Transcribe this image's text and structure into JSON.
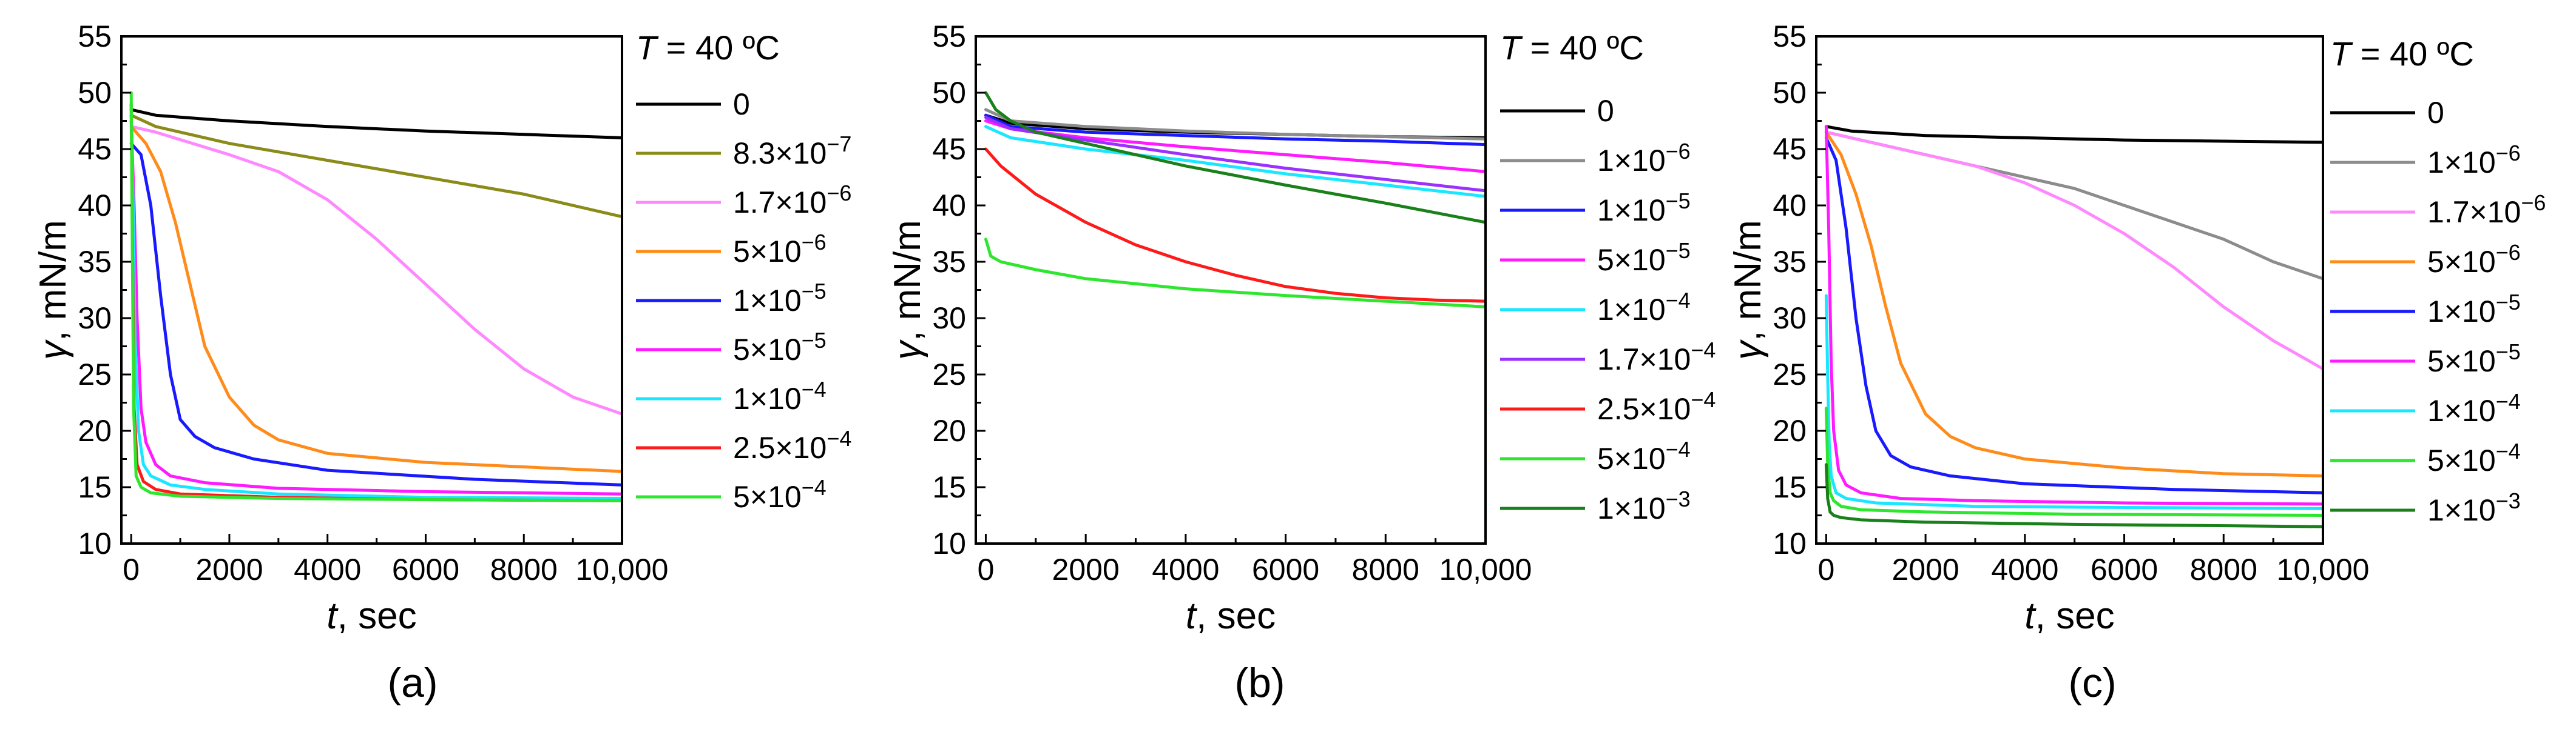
{
  "chart_data": [
    {
      "panel": "(a)",
      "type": "line",
      "xlabel": "t, sec",
      "ylabel": "γ, mN/m",
      "xlim": [
        -200,
        10000
      ],
      "ylim": [
        10,
        55
      ],
      "xticks": [
        "0",
        "2000",
        "4000",
        "6000",
        "8000",
        "10,000"
      ],
      "yticks": [
        "10",
        "15",
        "20",
        "25",
        "30",
        "35",
        "40",
        "45",
        "50",
        "55"
      ],
      "legend_title": "T = 40 ºC",
      "series": [
        {
          "name": "0",
          "color": "#000000",
          "x": [
            0,
            500,
            2000,
            4000,
            6000,
            8000,
            10000
          ],
          "y": [
            48.5,
            48.0,
            47.5,
            47.0,
            46.6,
            46.3,
            46.0
          ]
        },
        {
          "name": "8.3×10−7",
          "color": "#8b8b1a",
          "x": [
            0,
            500,
            2000,
            4000,
            6000,
            8000,
            10000
          ],
          "y": [
            48.0,
            47.0,
            45.5,
            44.0,
            42.5,
            41.0,
            39.0
          ]
        },
        {
          "name": "1.7×10−6",
          "color": "#ff88ff",
          "x": [
            0,
            500,
            2000,
            3000,
            4000,
            5000,
            6000,
            7000,
            8000,
            9000,
            10000
          ],
          "y": [
            47.0,
            46.5,
            44.5,
            43.0,
            40.5,
            37.0,
            33.0,
            29.0,
            25.5,
            23.0,
            21.5
          ]
        },
        {
          "name": "5×10−6",
          "color": "#ff8c1a",
          "x": [
            0,
            300,
            600,
            900,
            1200,
            1500,
            2000,
            2500,
            3000,
            4000,
            6000,
            8000,
            10000
          ],
          "y": [
            47.0,
            45.5,
            43.0,
            38.5,
            33.0,
            27.5,
            23.0,
            20.5,
            19.2,
            18.0,
            17.2,
            16.8,
            16.4
          ]
        },
        {
          "name": "1×10−5",
          "color": "#1a1aff",
          "x": [
            0,
            200,
            400,
            600,
            800,
            1000,
            1300,
            1700,
            2500,
            4000,
            7000,
            10000
          ],
          "y": [
            45.5,
            44.5,
            40.0,
            32.0,
            25.0,
            21.0,
            19.5,
            18.5,
            17.5,
            16.5,
            15.7,
            15.2
          ]
        },
        {
          "name": "5×10−5",
          "color": "#ff1aff",
          "x": [
            0,
            60,
            120,
            200,
            300,
            500,
            800,
            1500,
            3000,
            6000,
            10000
          ],
          "y": [
            47.5,
            40.0,
            30.0,
            22.0,
            19.0,
            17.0,
            16.0,
            15.4,
            14.9,
            14.6,
            14.4
          ]
        },
        {
          "name": "1×10−4",
          "color": "#1ae6ff",
          "x": [
            0,
            40,
            80,
            150,
            250,
            400,
            800,
            1500,
            3000,
            6000,
            10000
          ],
          "y": [
            48.0,
            40.0,
            28.0,
            20.0,
            17.0,
            16.0,
            15.2,
            14.8,
            14.4,
            14.1,
            14.0
          ]
        },
        {
          "name": "2.5×10−4",
          "color": "#ff1a1a",
          "x": [
            0,
            30,
            60,
            120,
            250,
            500,
            1000,
            3000,
            6000,
            10000
          ],
          "y": [
            49.0,
            35.0,
            22.0,
            17.0,
            15.5,
            14.8,
            14.4,
            14.1,
            13.9,
            13.8
          ]
        },
        {
          "name": "5×10−4",
          "color": "#2ee62e",
          "x": [
            0,
            20,
            50,
            100,
            200,
            400,
            1000,
            3000,
            6000,
            10000
          ],
          "y": [
            50.0,
            38.0,
            22.0,
            16.0,
            15.0,
            14.5,
            14.2,
            14.0,
            13.9,
            13.8
          ]
        }
      ]
    },
    {
      "panel": "(b)",
      "type": "line",
      "xlabel": "t, sec",
      "ylabel": "γ, mN/m",
      "xlim": [
        -200,
        10000
      ],
      "ylim": [
        10,
        55
      ],
      "xticks": [
        "0",
        "2000",
        "4000",
        "6000",
        "8000",
        "10,000"
      ],
      "yticks": [
        "10",
        "15",
        "20",
        "25",
        "30",
        "35",
        "40",
        "45",
        "50",
        "55"
      ],
      "legend_title": "T = 40 ºC",
      "series": [
        {
          "name": "0",
          "color": "#000000",
          "x": [
            0,
            500,
            2000,
            4000,
            6000,
            8000,
            10000
          ],
          "y": [
            48.0,
            47.3,
            46.8,
            46.5,
            46.3,
            46.1,
            46.0
          ]
        },
        {
          "name": "1×10−6",
          "color": "#8c8c8c",
          "x": [
            0,
            500,
            2000,
            4000,
            6000,
            8000,
            10000
          ],
          "y": [
            48.5,
            47.5,
            47.0,
            46.6,
            46.3,
            46.1,
            45.9
          ]
        },
        {
          "name": "1×10−5",
          "color": "#1a1aff",
          "x": [
            0,
            500,
            2000,
            4000,
            6000,
            8000,
            10000
          ],
          "y": [
            48.0,
            47.0,
            46.5,
            46.2,
            45.9,
            45.7,
            45.4
          ]
        },
        {
          "name": "5×10−5",
          "color": "#ff1aff",
          "x": [
            0,
            500,
            2000,
            4000,
            6000,
            8000,
            10000
          ],
          "y": [
            47.5,
            46.8,
            46.0,
            45.2,
            44.5,
            43.8,
            43.0
          ]
        },
        {
          "name": "1×10−4",
          "color": "#1ae6ff",
          "x": [
            0,
            500,
            2000,
            4000,
            6000,
            8000,
            10000
          ],
          "y": [
            47.0,
            46.0,
            45.0,
            44.0,
            42.8,
            41.8,
            40.8
          ]
        },
        {
          "name": "1.7×10−4",
          "color": "#9b30ff",
          "x": [
            0,
            500,
            2000,
            4000,
            6000,
            8000,
            10000
          ],
          "y": [
            47.8,
            46.8,
            45.8,
            44.5,
            43.3,
            42.3,
            41.3
          ]
        },
        {
          "name": "2.5×10−4",
          "color": "#ff1a1a",
          "x": [
            0,
            300,
            1000,
            2000,
            3000,
            4000,
            5000,
            6000,
            7000,
            8000,
            9000,
            10000
          ],
          "y": [
            45.0,
            43.5,
            41.0,
            38.5,
            36.5,
            35.0,
            33.8,
            32.8,
            32.2,
            31.8,
            31.6,
            31.5
          ]
        },
        {
          "name": "5×10−4",
          "color": "#2ee62e",
          "x": [
            0,
            100,
            300,
            1000,
            2000,
            4000,
            6000,
            8000,
            10000
          ],
          "y": [
            37.0,
            35.5,
            35.0,
            34.3,
            33.5,
            32.6,
            32.0,
            31.5,
            31.0
          ]
        },
        {
          "name": "1×10−3",
          "color": "#1a801a",
          "x": [
            0,
            200,
            500,
            1000,
            2000,
            4000,
            6000,
            8000,
            10000
          ],
          "y": [
            50.0,
            48.5,
            47.5,
            46.5,
            45.5,
            43.5,
            41.8,
            40.2,
            38.5
          ]
        }
      ]
    },
    {
      "panel": "(c)",
      "type": "line",
      "xlabel": "t, sec",
      "ylabel": "γ, mN/m",
      "xlim": [
        -200,
        10000
      ],
      "ylim": [
        10,
        55
      ],
      "xticks": [
        "0",
        "2000",
        "4000",
        "6000",
        "8000",
        "10,000"
      ],
      "yticks": [
        "10",
        "15",
        "20",
        "25",
        "30",
        "35",
        "40",
        "45",
        "50",
        "55"
      ],
      "legend_title": "T = 40 ºC",
      "series": [
        {
          "name": "0",
          "color": "#000000",
          "x": [
            0,
            500,
            2000,
            4000,
            6000,
            8000,
            10000
          ],
          "y": [
            47.0,
            46.6,
            46.2,
            46.0,
            45.8,
            45.7,
            45.6
          ]
        },
        {
          "name": "1×10−6",
          "color": "#8c8c8c",
          "x": [
            0,
            1000,
            2000,
            3000,
            4000,
            5000,
            6000,
            7000,
            8000,
            9000,
            10000
          ],
          "y": [
            46.5,
            45.5,
            44.5,
            43.5,
            42.5,
            41.5,
            40.0,
            38.5,
            37.0,
            35.0,
            33.5
          ]
        },
        {
          "name": "1.7×10−6",
          "color": "#ff88ff",
          "x": [
            0,
            1000,
            2000,
            3000,
            4000,
            5000,
            6000,
            7000,
            8000,
            9000,
            10000
          ],
          "y": [
            46.5,
            45.5,
            44.5,
            43.5,
            42.0,
            40.0,
            37.5,
            34.5,
            31.0,
            28.0,
            25.5
          ]
        },
        {
          "name": "5×10−6",
          "color": "#ff8c1a",
          "x": [
            0,
            300,
            600,
            900,
            1200,
            1500,
            2000,
            2500,
            3000,
            4000,
            6000,
            8000,
            10000
          ],
          "y": [
            46.5,
            44.5,
            41.0,
            36.5,
            31.0,
            26.0,
            21.5,
            19.5,
            18.5,
            17.5,
            16.7,
            16.2,
            16.0
          ]
        },
        {
          "name": "1×10−5",
          "color": "#1a1aff",
          "x": [
            0,
            200,
            400,
            600,
            800,
            1000,
            1300,
            1700,
            2500,
            4000,
            7000,
            10000
          ],
          "y": [
            46.0,
            44.0,
            38.0,
            30.0,
            24.0,
            20.0,
            17.8,
            16.8,
            16.0,
            15.3,
            14.8,
            14.5
          ]
        },
        {
          "name": "5×10−5",
          "color": "#ff1aff",
          "x": [
            0,
            50,
            100,
            150,
            250,
            400,
            700,
            1500,
            3000,
            6000,
            10000
          ],
          "y": [
            47.0,
            38.0,
            26.0,
            20.0,
            16.5,
            15.2,
            14.5,
            14.0,
            13.8,
            13.6,
            13.5
          ]
        },
        {
          "name": "1×10−4",
          "color": "#1ae6ff",
          "x": [
            0,
            30,
            60,
            100,
            200,
            400,
            1000,
            3000,
            6000,
            10000
          ],
          "y": [
            32.0,
            25.0,
            19.0,
            16.0,
            14.5,
            14.0,
            13.6,
            13.3,
            13.2,
            13.1
          ]
        },
        {
          "name": "5×10−4",
          "color": "#2ee62e",
          "x": [
            0,
            30,
            80,
            150,
            300,
            700,
            2000,
            5000,
            10000
          ],
          "y": [
            22.0,
            17.0,
            14.5,
            13.8,
            13.3,
            13.0,
            12.8,
            12.6,
            12.5
          ]
        },
        {
          "name": "1×10−3",
          "color": "#1a801a",
          "x": [
            0,
            30,
            80,
            150,
            300,
            700,
            2000,
            5000,
            10000
          ],
          "y": [
            17.0,
            14.0,
            12.8,
            12.5,
            12.3,
            12.1,
            11.9,
            11.7,
            11.5
          ]
        }
      ]
    }
  ]
}
